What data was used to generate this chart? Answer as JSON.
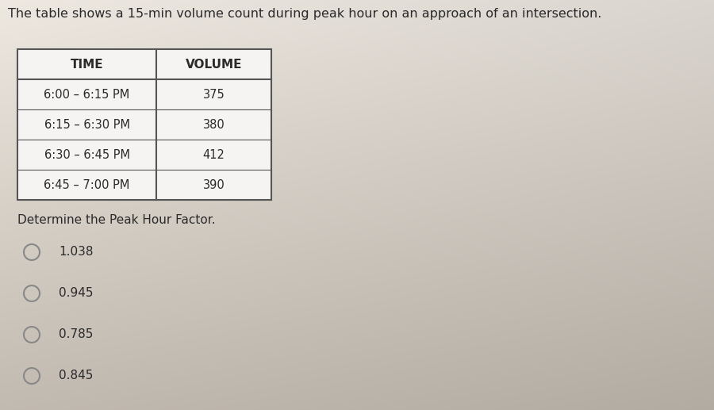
{
  "title": "The table shows a 15-min volume count during peak hour on an approach of an intersection.",
  "title_fontsize": 11.5,
  "table_headers": [
    "TIME",
    "VOLUME"
  ],
  "table_rows": [
    [
      "6:00 – 6:15 PM",
      "375"
    ],
    [
      "6:15 – 6:30 PM",
      "380"
    ],
    [
      "6:30 – 6:45 PM",
      "412"
    ],
    [
      "6:45 – 7:00 PM",
      "390"
    ]
  ],
  "question": "Determine the Peak Hour Factor.",
  "question_fontsize": 11,
  "options": [
    "1.038",
    "0.945",
    "0.785",
    "0.845"
  ],
  "options_fontsize": 11,
  "bg_color_top": "#e8e4df",
  "bg_color_bottom": "#c8c2b8",
  "table_bg": "#f5f4f2",
  "text_color": "#2a2a2a",
  "border_color": "#555555",
  "circle_color": "#888888"
}
